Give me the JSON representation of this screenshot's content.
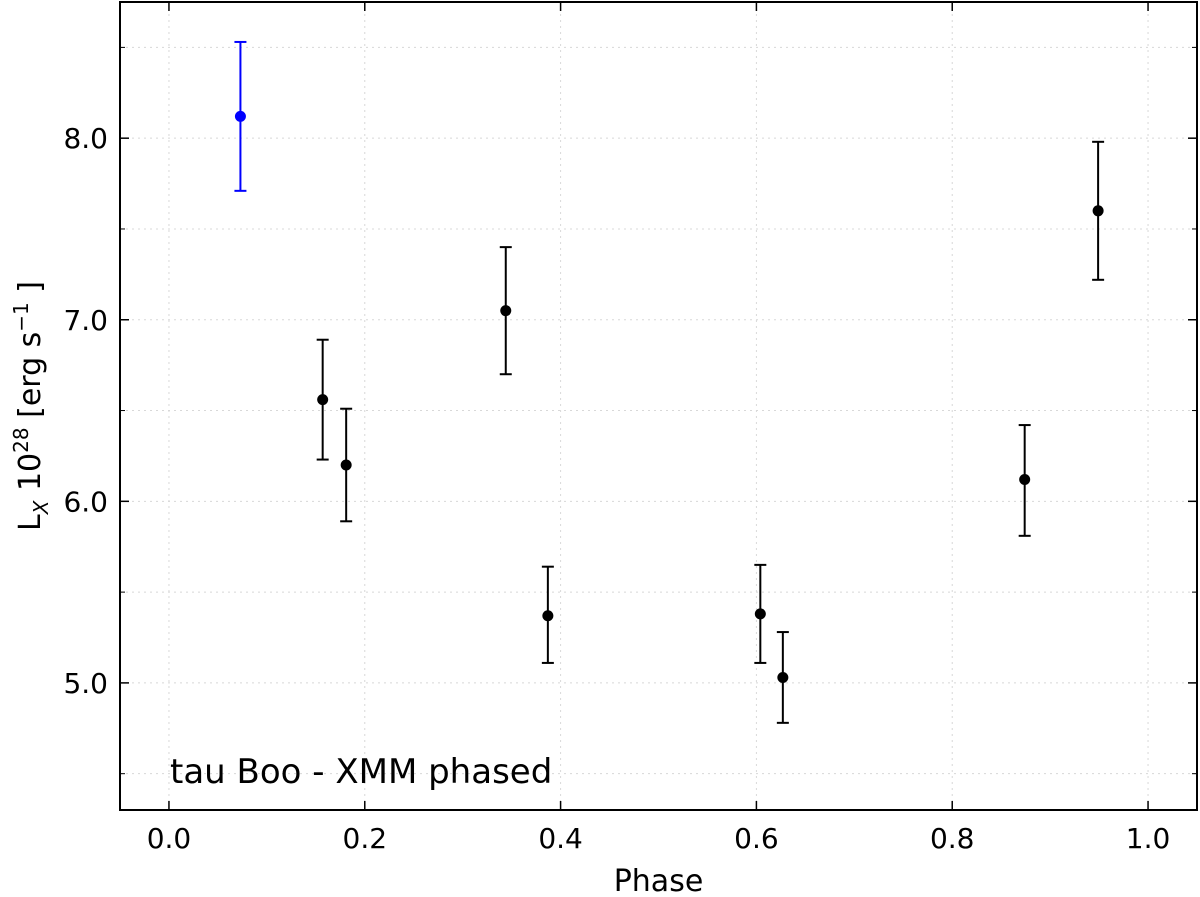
{
  "chart_data": {
    "type": "scatter",
    "title": "",
    "xlabel": "Phase",
    "ylabel": {
      "main": "L",
      "subscript": "X",
      "middle": " 10",
      "superscript": "28",
      "unit_open": " [erg s",
      "unit_exp": "−1",
      "unit_close": " ]"
    },
    "xlim": [
      -0.05,
      1.05
    ],
    "ylim": [
      4.3,
      8.75
    ],
    "xticks": [
      0.0,
      0.2,
      0.4,
      0.6,
      0.8,
      1.0
    ],
    "xtick_labels": [
      "0.0",
      "0.2",
      "0.4",
      "0.6",
      "0.8",
      "1.0"
    ],
    "yticks": [
      5.0,
      6.0,
      7.0,
      8.0
    ],
    "ytick_labels": [
      "5.0",
      "6.0",
      "7.0",
      "8.0"
    ],
    "grid": true,
    "annotation": "tau Boo - XMM phased",
    "series": [
      {
        "color": "#0000ff",
        "points": [
          {
            "x": 0.073,
            "y": 8.12,
            "yerr_low": 7.71,
            "yerr_high": 8.53
          }
        ]
      },
      {
        "color": "#000000",
        "points": [
          {
            "x": 0.157,
            "y": 6.56,
            "yerr_low": 6.23,
            "yerr_high": 6.89
          },
          {
            "x": 0.181,
            "y": 6.2,
            "yerr_low": 5.89,
            "yerr_high": 6.51
          },
          {
            "x": 0.344,
            "y": 7.05,
            "yerr_low": 6.7,
            "yerr_high": 7.4
          },
          {
            "x": 0.387,
            "y": 5.37,
            "yerr_low": 5.11,
            "yerr_high": 5.64
          },
          {
            "x": 0.604,
            "y": 5.38,
            "yerr_low": 5.11,
            "yerr_high": 5.65
          },
          {
            "x": 0.627,
            "y": 5.03,
            "yerr_low": 4.78,
            "yerr_high": 5.28
          },
          {
            "x": 0.874,
            "y": 6.12,
            "yerr_low": 5.81,
            "yerr_high": 6.42
          },
          {
            "x": 0.949,
            "y": 7.6,
            "yerr_low": 7.22,
            "yerr_high": 7.98
          }
        ]
      }
    ]
  }
}
